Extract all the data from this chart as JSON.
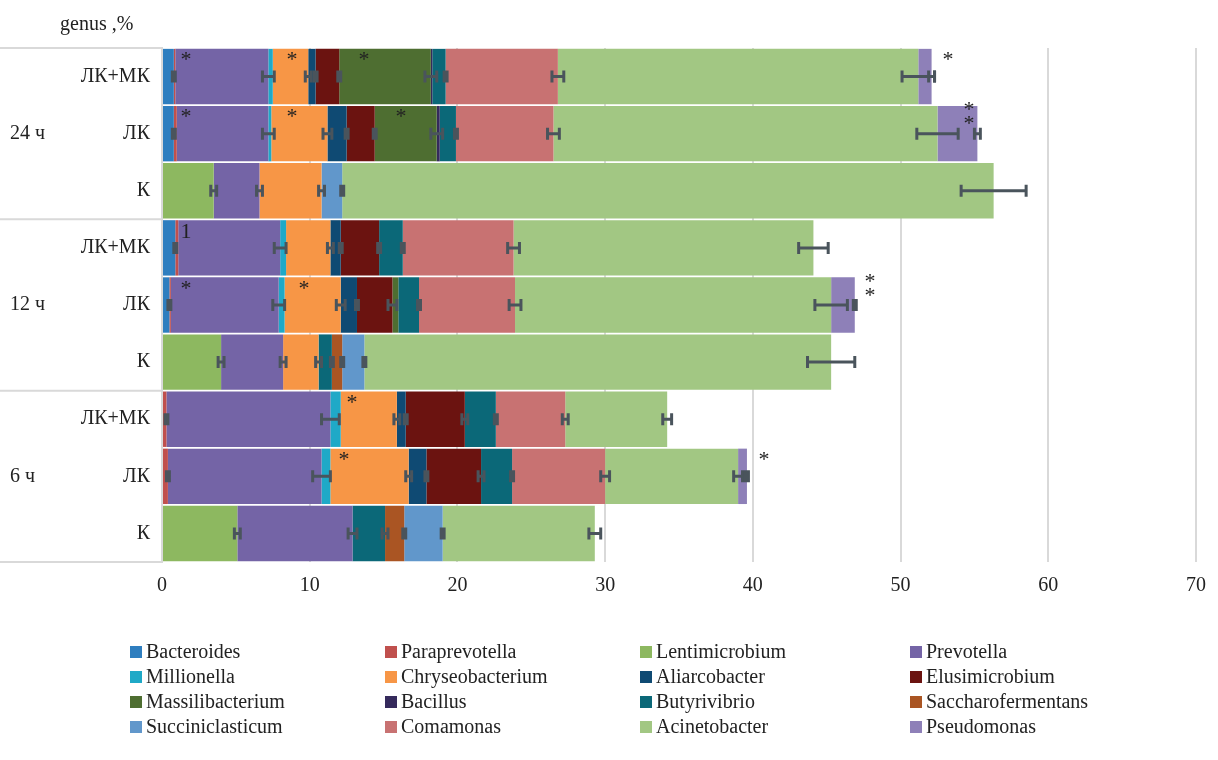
{
  "chart_data": {
    "type": "bar",
    "orientation": "horizontal",
    "stacked": true,
    "ylabel": "genus ,%",
    "categories": [
      "ЛК+МК",
      "ЛК",
      "К",
      "ЛК+МК",
      "ЛК",
      "К",
      "ЛК+МК",
      "ЛК",
      "К"
    ],
    "xlim": [
      0,
      70
    ],
    "xticks": [
      0,
      10,
      20,
      30,
      40,
      50,
      60,
      70
    ],
    "grid": "x",
    "legend": "bottom",
    "series": [
      {
        "name": "Bacteroides",
        "color": "#2e7ebf",
        "values": [
          0.8,
          0.8,
          null,
          0.9,
          0.5,
          null,
          null,
          null,
          null
        ],
        "errors": [
          0.1,
          0.1,
          null,
          0.1,
          0.1,
          null,
          null,
          null,
          null
        ]
      },
      {
        "name": "Paraprevotella",
        "color": "#c0504d",
        "values": [
          0.1,
          0.2,
          null,
          0.2,
          0.1,
          null,
          0.3,
          0.4,
          null
        ],
        "errors": [
          null,
          null,
          null,
          null,
          null,
          null,
          0.1,
          0.1,
          null
        ]
      },
      {
        "name": "Lentimicrobium",
        "color": "#8db860",
        "values": [
          null,
          null,
          3.5,
          null,
          null,
          4.0,
          null,
          null,
          5.1
        ],
        "errors": [
          null,
          null,
          0.2,
          null,
          null,
          0.2,
          null,
          null,
          0.2
        ]
      },
      {
        "name": "Prevotella",
        "color": "#7464a6",
        "values": [
          6.3,
          6.2,
          3.1,
          6.9,
          7.3,
          4.2,
          11.1,
          10.4,
          7.8
        ],
        "errors": [
          0.4,
          0.4,
          0.2,
          0.4,
          0.4,
          0.2,
          0.6,
          0.6,
          0.3
        ]
      },
      {
        "name": "Millionella",
        "color": "#1fa9c7",
        "values": [
          0.3,
          0.2,
          null,
          0.4,
          0.4,
          null,
          0.7,
          0.6,
          null
        ]
      },
      {
        "name": "Chryseobacterium",
        "color": "#f79646",
        "values": [
          2.4,
          3.8,
          4.2,
          3.0,
          3.8,
          2.4,
          3.8,
          5.3,
          null
        ],
        "errors": [
          0.2,
          0.3,
          0.2,
          0.2,
          0.3,
          0.2,
          0.2,
          0.2,
          null
        ]
      },
      {
        "name": "Aliarcobacter",
        "color": "#0f4a73",
        "values": [
          0.5,
          1.3,
          null,
          0.7,
          1.1,
          null,
          0.6,
          1.2,
          null
        ],
        "errors": [
          0.1,
          0.1,
          null,
          0.1,
          0.1,
          null,
          0.1,
          0.1,
          null
        ]
      },
      {
        "name": "Elusimicrobium",
        "color": "#6b1310",
        "values": [
          1.6,
          1.9,
          null,
          2.6,
          2.4,
          null,
          4.0,
          3.7,
          null
        ],
        "errors": [
          0.1,
          0.1,
          null,
          0.1,
          0.3,
          null,
          0.2,
          0.2,
          null
        ]
      },
      {
        "name": "Massilibacterium",
        "color": "#4e6e31",
        "values": [
          6.2,
          4.2,
          null,
          null,
          0.4,
          null,
          null,
          null,
          null
        ],
        "errors": [
          0.4,
          0.4,
          null,
          null,
          null,
          null,
          null,
          null,
          null
        ]
      },
      {
        "name": "Bacillus",
        "color": "#352a5c",
        "values": [
          0.1,
          0.2,
          null,
          null,
          null,
          null,
          null,
          null,
          null
        ]
      },
      {
        "name": "Butyrivibrio",
        "color": "#0b6878",
        "values": [
          0.9,
          1.1,
          null,
          1.6,
          1.4,
          0.9,
          2.1,
          2.1,
          2.2
        ],
        "errors": [
          0.1,
          0.1,
          null,
          0.1,
          0.1,
          0.1,
          0.1,
          0.1,
          0.2
        ]
      },
      {
        "name": "Saccharofermentans",
        "color": "#aa5523",
        "values": [
          null,
          null,
          null,
          null,
          null,
          0.7,
          null,
          null,
          1.3
        ],
        "errors": [
          null,
          null,
          null,
          null,
          null,
          0.1,
          null,
          null,
          0.1
        ]
      },
      {
        "name": "Succiniclasticum",
        "color": "#6197cb",
        "values": [
          null,
          null,
          1.4,
          null,
          null,
          1.5,
          null,
          null,
          2.6
        ],
        "errors": [
          null,
          null,
          0.1,
          null,
          null,
          0.1,
          null,
          null,
          0.1
        ]
      },
      {
        "name": "Comamonas",
        "color": "#c87272",
        "values": [
          7.6,
          6.6,
          null,
          7.5,
          6.5,
          null,
          4.7,
          6.3,
          null
        ],
        "errors": [
          0.4,
          0.4,
          null,
          0.4,
          0.4,
          null,
          0.2,
          0.3,
          null
        ]
      },
      {
        "name": "Acinetobacter",
        "color": "#a2c783",
        "values": [
          24.4,
          26.0,
          44.1,
          20.3,
          21.4,
          31.6,
          6.9,
          9.0,
          10.3
        ],
        "errors": [
          1.1,
          1.4,
          2.2,
          1.0,
          1.1,
          1.6,
          0.3,
          0.3,
          0.4
        ]
      },
      {
        "name": "Pseudomonas",
        "color": "#8e80b8",
        "values": [
          0.9,
          2.7,
          null,
          null,
          1.6,
          null,
          null,
          0.6,
          null
        ],
        "errors": [
          0.2,
          0.2,
          null,
          null,
          0.1,
          null,
          null,
          0.1,
          null
        ]
      }
    ],
    "annotations": [
      "24 ч",
      "12 ч",
      "6 ч",
      "*",
      "*",
      "*",
      "*",
      "*",
      "*",
      "*",
      "*\n*",
      "1",
      "*",
      "*",
      "*\n*",
      "*",
      "*",
      "*"
    ]
  }
}
